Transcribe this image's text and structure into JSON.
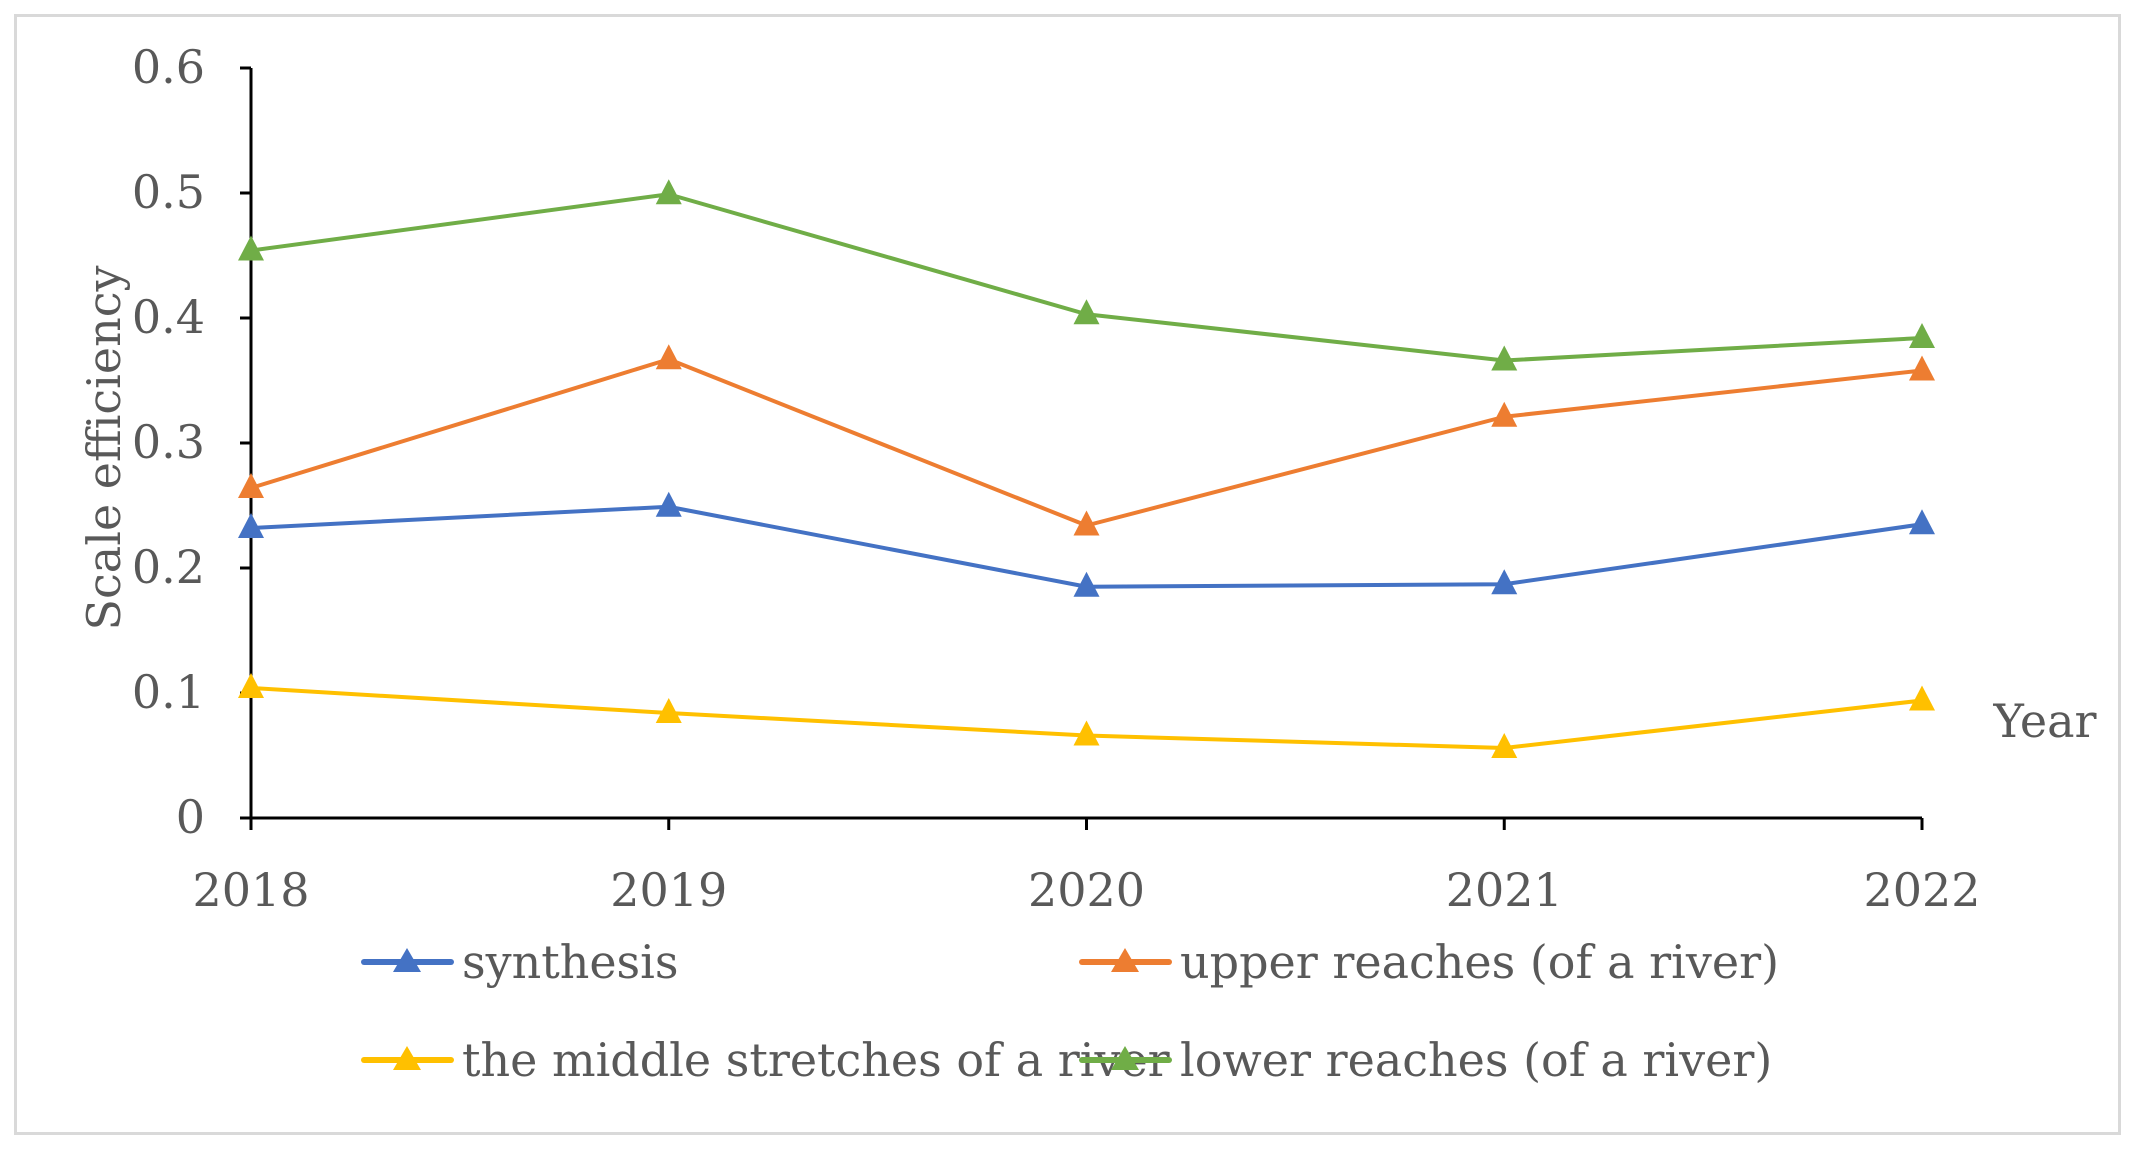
{
  "chart_data": {
    "type": "line",
    "title": "",
    "xlabel": "Year",
    "ylabel": "Scale efficiency",
    "categories": [
      "2018",
      "2019",
      "2020",
      "2021",
      "2022"
    ],
    "ylim": [
      0,
      0.6
    ],
    "yticks": [
      "0",
      "0.1",
      "0.2",
      "0.3",
      "0.4",
      "0.5",
      "0.6"
    ],
    "grid": false,
    "legend_position": "bottom",
    "series": [
      {
        "name": "synthesis",
        "color": "#4472c4",
        "marker": "triangle",
        "values": [
          0.232,
          0.249,
          0.185,
          0.187,
          0.235
        ]
      },
      {
        "name": "upper reaches (of a river)",
        "color": "#ed7d31",
        "marker": "triangle",
        "values": [
          0.264,
          0.367,
          0.234,
          0.321,
          0.358
        ]
      },
      {
        "name": "the middle stretches of a river",
        "color": "#ffc000",
        "marker": "triangle",
        "values": [
          0.104,
          0.084,
          0.066,
          0.056,
          0.094
        ]
      },
      {
        "name": "lower reaches (of a river)",
        "color": "#70ad47",
        "marker": "triangle",
        "values": [
          0.454,
          0.499,
          0.403,
          0.366,
          0.384
        ]
      }
    ]
  }
}
